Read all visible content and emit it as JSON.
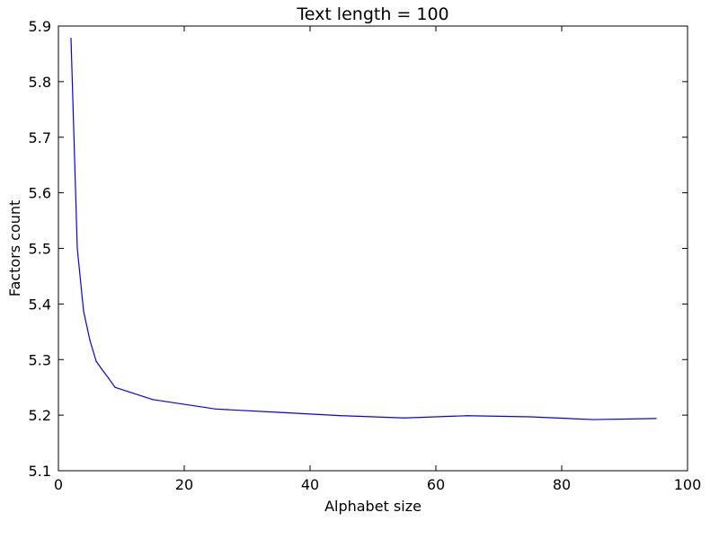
{
  "chart_data": {
    "type": "line",
    "title": "Text length = 100",
    "xlabel": "Alphabet size",
    "ylabel": "Factors count",
    "xlim": [
      0,
      100
    ],
    "ylim": [
      5.1,
      5.9
    ],
    "xticks": [
      0,
      20,
      40,
      60,
      80,
      100
    ],
    "yticks": [
      5.1,
      5.2,
      5.3,
      5.4,
      5.5,
      5.6,
      5.7,
      5.8,
      5.9
    ],
    "xtick_labels": [
      "0",
      "20",
      "40",
      "60",
      "80",
      "100"
    ],
    "ytick_labels": [
      "5.1",
      "5.2",
      "5.3",
      "5.4",
      "5.5",
      "5.6",
      "5.7",
      "5.8",
      "5.9"
    ],
    "grid": false,
    "series": [
      {
        "color": "#0000ff",
        "x": [
          2,
          3,
          4,
          5,
          6,
          7,
          8,
          9,
          15,
          25,
          35,
          45,
          55,
          65,
          75,
          85,
          95
        ],
        "y": [
          5.878,
          5.5,
          5.387,
          5.335,
          5.297,
          5.281,
          5.266,
          5.25,
          5.228,
          5.211,
          5.205,
          5.199,
          5.195,
          5.199,
          5.197,
          5.192,
          5.194
        ]
      }
    ]
  }
}
